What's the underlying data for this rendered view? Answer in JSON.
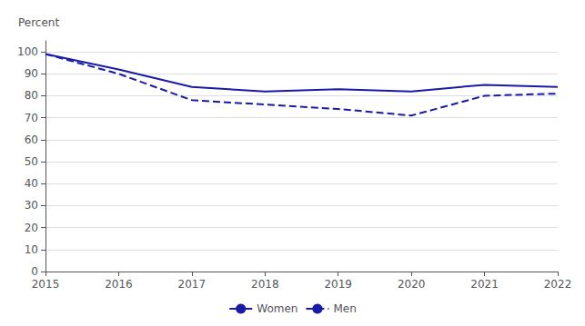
{
  "chart_data": {
    "type": "line",
    "x": [
      2015,
      2016,
      2017,
      2018,
      2019,
      2020,
      2021,
      2022
    ],
    "series": [
      {
        "name": "Women",
        "color": "#1a1aaa",
        "line_style": "solid",
        "values": [
          99,
          92,
          84,
          82,
          83,
          82,
          85,
          84
        ]
      },
      {
        "name": "Men",
        "color": "#1a1aaa",
        "line_style": "dashed",
        "values": [
          99,
          90,
          78,
          76,
          74,
          71,
          80,
          81
        ]
      }
    ],
    "ylabel": "Percent",
    "xlim": [
      2015,
      2022
    ],
    "xticks": [
      2015,
      2016,
      2017,
      2018,
      2019,
      2020,
      2021,
      2022
    ],
    "ylim": [
      0,
      105
    ],
    "yticks": [
      0,
      10,
      20,
      30,
      40,
      50,
      60,
      70,
      80,
      90,
      100
    ],
    "grid": true,
    "legend": "bottom"
  }
}
